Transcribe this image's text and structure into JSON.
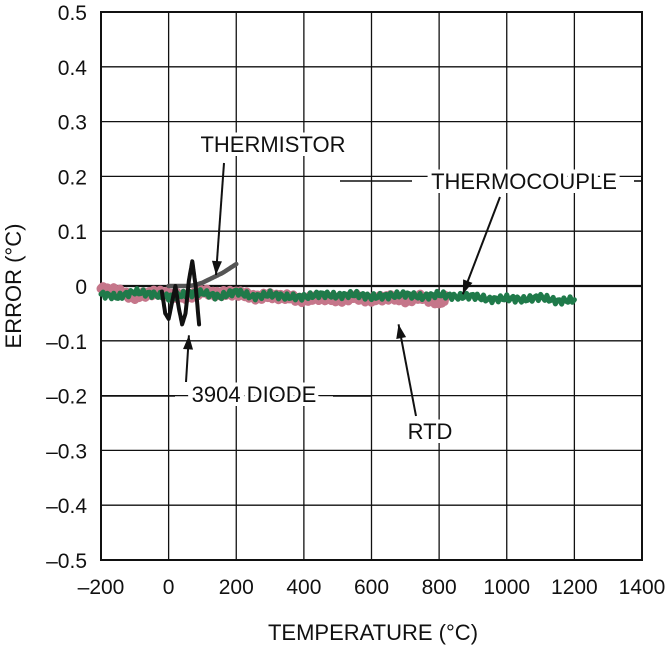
{
  "chart_data": {
    "type": "line",
    "title": "",
    "xlabel": "TEMPERATURE (°C)",
    "ylabel": "ERROR (°C)",
    "xlim": [
      -200,
      1400
    ],
    "ylim": [
      -0.5,
      0.5
    ],
    "x_ticks": [
      -200,
      0,
      200,
      400,
      600,
      800,
      1000,
      1200,
      1400
    ],
    "x_tick_labels": [
      "–200",
      "0",
      "200",
      "400",
      "600",
      "800",
      "1000",
      "1200",
      "1400"
    ],
    "y_ticks": [
      0.5,
      0.4,
      0.3,
      0.2,
      0.1,
      0,
      -0.1,
      -0.2,
      -0.3,
      -0.4,
      -0.5
    ],
    "y_tick_labels": [
      "0.5",
      "0.4",
      "0.3",
      "0.2",
      "0.1",
      "0",
      "–0.1",
      "–0.2",
      "–0.3",
      "–0.4",
      "–0.5"
    ],
    "grid": true,
    "legend": "none",
    "series": [
      {
        "name": "THERMISTOR",
        "color": "#555555",
        "points": [
          [
            0,
            0.0
          ],
          [
            20,
            0.0
          ],
          [
            40,
            0.0
          ],
          [
            60,
            0.0
          ],
          [
            80,
            0.002
          ],
          [
            100,
            0.006
          ],
          [
            120,
            0.012
          ],
          [
            140,
            0.018
          ],
          [
            160,
            0.024
          ],
          [
            180,
            0.032
          ],
          [
            200,
            0.04
          ]
        ]
      },
      {
        "name": "3904 DIODE",
        "color": "#111111",
        "points": [
          [
            -20,
            -0.01
          ],
          [
            -10,
            -0.05
          ],
          [
            0,
            -0.06
          ],
          [
            10,
            -0.03
          ],
          [
            20,
            0.0
          ],
          [
            30,
            -0.04
          ],
          [
            40,
            -0.07
          ],
          [
            50,
            -0.05
          ],
          [
            60,
            0.01
          ],
          [
            70,
            0.045
          ],
          [
            80,
            0.0
          ],
          [
            90,
            -0.07
          ]
        ]
      },
      {
        "name": "RTD",
        "color": "#c5768a",
        "points": [
          [
            -200,
            -0.005
          ],
          [
            -150,
            -0.01
          ],
          [
            -100,
            -0.02
          ],
          [
            -50,
            -0.012
          ],
          [
            0,
            -0.015
          ],
          [
            50,
            -0.02
          ],
          [
            100,
            -0.01
          ],
          [
            150,
            -0.015
          ],
          [
            200,
            -0.012
          ],
          [
            250,
            -0.02
          ],
          [
            300,
            -0.018
          ],
          [
            350,
            -0.02
          ],
          [
            400,
            -0.025
          ],
          [
            450,
            -0.02
          ],
          [
            500,
            -0.025
          ],
          [
            550,
            -0.02
          ],
          [
            600,
            -0.025
          ],
          [
            650,
            -0.02
          ],
          [
            700,
            -0.025
          ],
          [
            750,
            -0.02
          ],
          [
            800,
            -0.03
          ],
          [
            820,
            -0.02
          ]
        ]
      },
      {
        "name": "THERMOCOUPLE",
        "color": "#1f7a4a",
        "points": [
          [
            -200,
            -0.015
          ],
          [
            -150,
            -0.02
          ],
          [
            -100,
            -0.01
          ],
          [
            -50,
            -0.015
          ],
          [
            0,
            -0.02
          ],
          [
            50,
            -0.015
          ],
          [
            100,
            -0.012
          ],
          [
            150,
            -0.02
          ],
          [
            200,
            -0.01
          ],
          [
            250,
            -0.02
          ],
          [
            300,
            -0.015
          ],
          [
            350,
            -0.02
          ],
          [
            400,
            -0.02
          ],
          [
            450,
            -0.015
          ],
          [
            500,
            -0.018
          ],
          [
            550,
            -0.015
          ],
          [
            600,
            -0.02
          ],
          [
            650,
            -0.018
          ],
          [
            700,
            -0.015
          ],
          [
            750,
            -0.02
          ],
          [
            800,
            -0.015
          ],
          [
            850,
            -0.02
          ],
          [
            900,
            -0.018
          ],
          [
            950,
            -0.025
          ],
          [
            1000,
            -0.022
          ],
          [
            1050,
            -0.025
          ],
          [
            1100,
            -0.02
          ],
          [
            1150,
            -0.028
          ],
          [
            1200,
            -0.025
          ]
        ]
      }
    ],
    "annotations": [
      {
        "text": "THERMISTOR",
        "points_to": [
          140,
          0.02
        ]
      },
      {
        "text": "THERMOCOUPLE",
        "points_to": [
          870,
          -0.015
        ]
      },
      {
        "text": "3904 DIODE",
        "points_to": [
          60,
          -0.09
        ]
      },
      {
        "text": "RTD",
        "points_to": [
          680,
          -0.07
        ]
      }
    ]
  }
}
